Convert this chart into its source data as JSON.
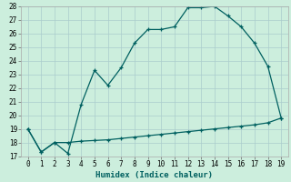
{
  "xlabel": "Humidex (Indice chaleur)",
  "x": [
    0,
    1,
    2,
    3,
    4,
    5,
    6,
    7,
    8,
    9,
    10,
    11,
    12,
    13,
    14,
    15,
    16,
    17,
    18,
    19
  ],
  "y_upper": [
    19,
    17.3,
    18,
    17.2,
    20.8,
    23.3,
    22.2,
    23.5,
    25.3,
    26.3,
    26.3,
    26.5,
    27.9,
    27.9,
    28.0,
    27.3,
    26.5,
    25.3,
    23.6,
    19.8
  ],
  "y_lower": [
    19,
    17.3,
    18,
    18.0,
    18.1,
    18.15,
    18.2,
    18.3,
    18.4,
    18.5,
    18.6,
    18.7,
    18.8,
    18.9,
    19.0,
    19.1,
    19.2,
    19.3,
    19.45,
    19.8
  ],
  "line_color": "#006060",
  "bg_color": "#cceedd",
  "grid_color": "#aacccc",
  "ylim": [
    17,
    28
  ],
  "yticks": [
    17,
    18,
    19,
    20,
    21,
    22,
    23,
    24,
    25,
    26,
    27,
    28
  ],
  "xticks": [
    0,
    1,
    2,
    3,
    4,
    5,
    6,
    7,
    8,
    9,
    10,
    11,
    12,
    13,
    14,
    15,
    16,
    17,
    18,
    19
  ],
  "tick_fontsize": 5.5,
  "xlabel_fontsize": 6.5
}
